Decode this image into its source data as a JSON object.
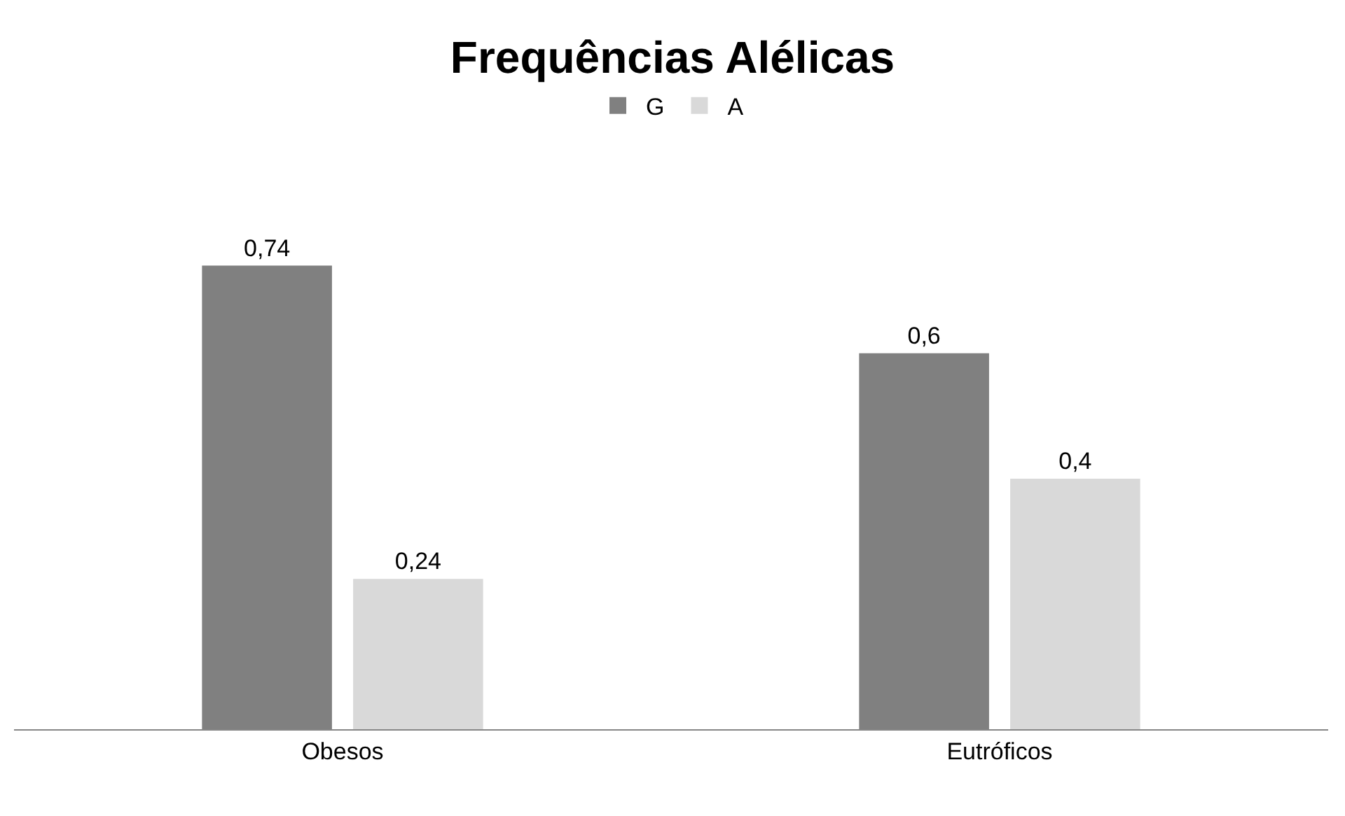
{
  "chart_data": {
    "type": "bar",
    "title": "Frequências Alélicas",
    "categories": [
      "Obesos",
      "Eutróficos"
    ],
    "legend": "top",
    "series": [
      {
        "name": "G",
        "color": "#808080",
        "values": [
          0.74,
          0.6
        ],
        "value_labels": [
          "0,74",
          "0,6"
        ]
      },
      {
        "name": "A",
        "color": "#d9d9d9",
        "values": [
          0.24,
          0.4
        ],
        "value_labels": [
          "0,24",
          "0,4"
        ]
      }
    ]
  }
}
